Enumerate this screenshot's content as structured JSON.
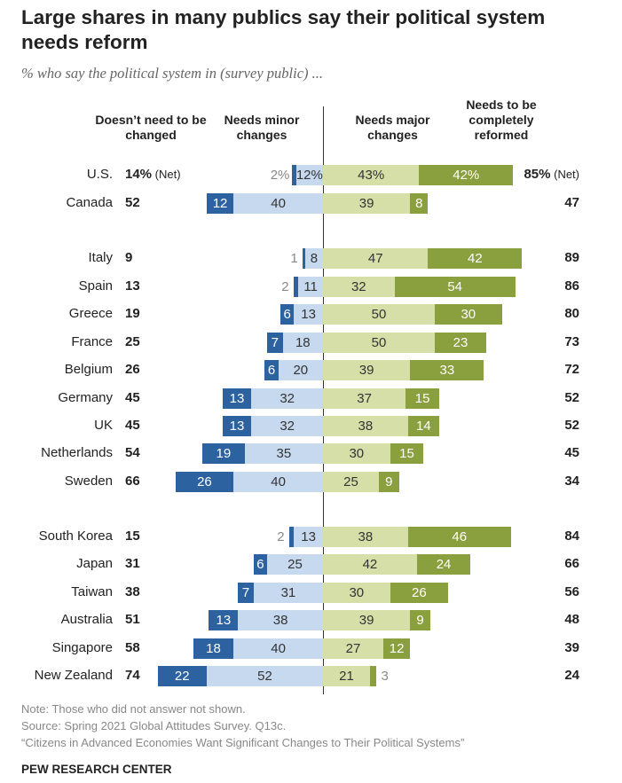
{
  "title": "Large shares in many publics say their political system needs reform",
  "subtitle": "% who say the political system in (survey public) ...",
  "colors": {
    "no_change": "#2d62a0",
    "minor": "#c6d9ef",
    "major": "#d6dfa8",
    "complete": "#8a9f3d"
  },
  "chart_data": {
    "type": "bar",
    "orientation": "horizontal diverging stacked",
    "headers": {
      "no_change_net": "Doesn’t need to be changed",
      "minor": "Needs minor changes",
      "major": "Needs major changes",
      "complete": "Needs to be completely reformed"
    },
    "series": [
      {
        "name": "Doesn’t need to be changed",
        "key": "no_change"
      },
      {
        "name": "Needs minor changes",
        "key": "minor"
      },
      {
        "name": "Needs major changes",
        "key": "major"
      },
      {
        "name": "Needs to be completely reformed",
        "key": "complete"
      }
    ],
    "net_suffix": "(Net)",
    "rows": [
      {
        "country": "U.S.",
        "no_change": 2,
        "minor": 12,
        "major": 43,
        "complete": 42,
        "net_left": 14,
        "net_right": 85,
        "pct": true,
        "group": 0
      },
      {
        "country": "Canada",
        "no_change": 12,
        "minor": 40,
        "major": 39,
        "complete": 8,
        "net_left": 52,
        "net_right": 47,
        "group": 0
      },
      {
        "country": "Italy",
        "no_change": 1,
        "minor": 8,
        "major": 47,
        "complete": 42,
        "net_left": 9,
        "net_right": 89,
        "group": 1
      },
      {
        "country": "Spain",
        "no_change": 2,
        "minor": 11,
        "major": 32,
        "complete": 54,
        "net_left": 13,
        "net_right": 86,
        "group": 1
      },
      {
        "country": "Greece",
        "no_change": 6,
        "minor": 13,
        "major": 50,
        "complete": 30,
        "net_left": 19,
        "net_right": 80,
        "group": 1
      },
      {
        "country": "France",
        "no_change": 7,
        "minor": 18,
        "major": 50,
        "complete": 23,
        "net_left": 25,
        "net_right": 73,
        "group": 1
      },
      {
        "country": "Belgium",
        "no_change": 6,
        "minor": 20,
        "major": 39,
        "complete": 33,
        "net_left": 26,
        "net_right": 72,
        "group": 1
      },
      {
        "country": "Germany",
        "no_change": 13,
        "minor": 32,
        "major": 37,
        "complete": 15,
        "net_left": 45,
        "net_right": 52,
        "group": 1
      },
      {
        "country": "UK",
        "no_change": 13,
        "minor": 32,
        "major": 38,
        "complete": 14,
        "net_left": 45,
        "net_right": 52,
        "group": 1
      },
      {
        "country": "Netherlands",
        "no_change": 19,
        "minor": 35,
        "major": 30,
        "complete": 15,
        "net_left": 54,
        "net_right": 45,
        "group": 1
      },
      {
        "country": "Sweden",
        "no_change": 26,
        "minor": 40,
        "major": 25,
        "complete": 9,
        "net_left": 66,
        "net_right": 34,
        "group": 1
      },
      {
        "country": "South Korea",
        "no_change": 2,
        "minor": 13,
        "major": 38,
        "complete": 46,
        "net_left": 15,
        "net_right": 84,
        "group": 2
      },
      {
        "country": "Japan",
        "no_change": 6,
        "minor": 25,
        "major": 42,
        "complete": 24,
        "net_left": 31,
        "net_right": 66,
        "group": 2
      },
      {
        "country": "Taiwan",
        "no_change": 7,
        "minor": 31,
        "major": 30,
        "complete": 26,
        "net_left": 38,
        "net_right": 56,
        "group": 2
      },
      {
        "country": "Australia",
        "no_change": 13,
        "minor": 38,
        "major": 39,
        "complete": 9,
        "net_left": 51,
        "net_right": 48,
        "group": 2
      },
      {
        "country": "Singapore",
        "no_change": 18,
        "minor": 40,
        "major": 27,
        "complete": 12,
        "net_left": 58,
        "net_right": 39,
        "group": 2
      },
      {
        "country": "New Zealand",
        "no_change": 22,
        "minor": 52,
        "major": 21,
        "complete": 3,
        "net_left": 74,
        "net_right": 24,
        "group": 2
      }
    ]
  },
  "notes": [
    "Note: Those who did not answer not shown.",
    "Source: Spring 2021 Global Attitudes Survey. Q13c.",
    "“Citizens in Advanced Economies Want Significant Changes to Their Political Systems”"
  ],
  "source_org": "PEW RESEARCH CENTER"
}
